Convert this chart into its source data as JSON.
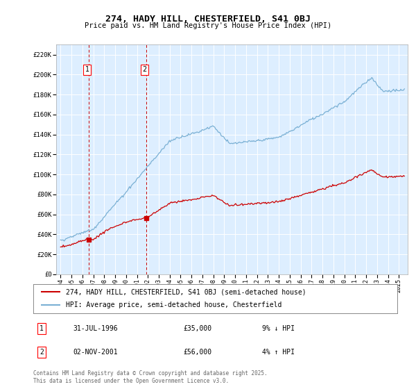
{
  "title": "274, HADY HILL, CHESTERFIELD, S41 0BJ",
  "subtitle": "Price paid vs. HM Land Registry's House Price Index (HPI)",
  "legend_line1": "274, HADY HILL, CHESTERFIELD, S41 0BJ (semi-detached house)",
  "legend_line2": "HPI: Average price, semi-detached house, Chesterfield",
  "table_rows": [
    {
      "num": "1",
      "date": "31-JUL-1996",
      "price": "£35,000",
      "change": "9% ↓ HPI"
    },
    {
      "num": "2",
      "date": "02-NOV-2001",
      "price": "£56,000",
      "change": "4% ↑ HPI"
    }
  ],
  "footnote": "Contains HM Land Registry data © Crown copyright and database right 2025.\nThis data is licensed under the Open Government Licence v3.0.",
  "ylim": [
    0,
    230000
  ],
  "yticks": [
    0,
    20000,
    40000,
    60000,
    80000,
    100000,
    120000,
    140000,
    160000,
    180000,
    200000,
    220000
  ],
  "ytick_labels": [
    "£0",
    "£20K",
    "£40K",
    "£60K",
    "£80K",
    "£100K",
    "£120K",
    "£140K",
    "£160K",
    "£180K",
    "£200K",
    "£220K"
  ],
  "sale1_year": 1996.58,
  "sale1_price": 35000,
  "sale2_year": 2001.84,
  "sale2_price": 56000,
  "red_color": "#cc0000",
  "blue_color": "#7ab0d4",
  "bg_color": "#ddeeff",
  "grid_color": "#ffffff",
  "xmin": 1994.0,
  "xmax": 2025.5
}
